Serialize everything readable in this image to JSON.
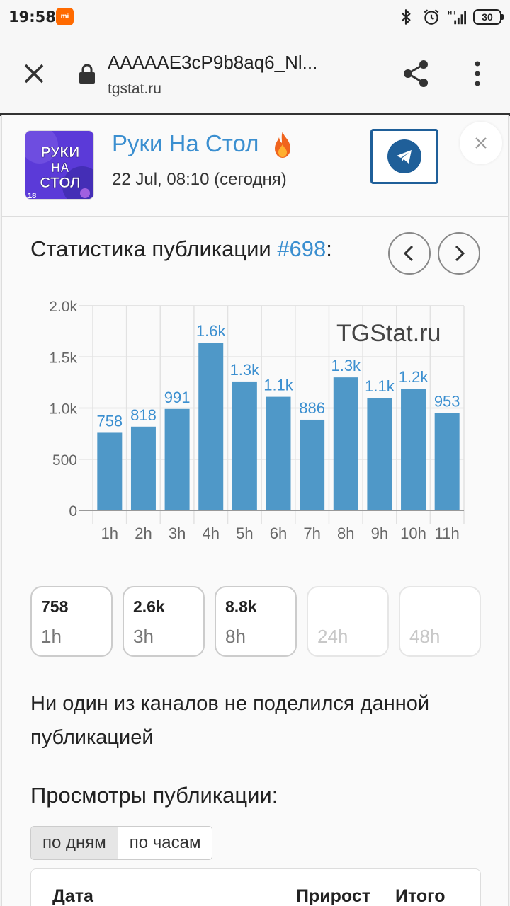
{
  "status_bar": {
    "time": "19:58",
    "app_badge": "mi",
    "network": "H+",
    "battery": "30"
  },
  "browser": {
    "url_title": "AAAAAE3cP9b8aq6_Nl...",
    "domain": "tgstat.ru"
  },
  "channel": {
    "name": "Руки На Стол",
    "post_date": "22 Jul, 08:10 (сегодня)",
    "avatar_text_1": "РУКИ",
    "avatar_text_2": "НА",
    "avatar_text_3": "СТОЛ",
    "avatar_badge": "18"
  },
  "stats": {
    "title_prefix": "Статистика публикации ",
    "post_number": "#698",
    "title_suffix": ":"
  },
  "chart_data": {
    "type": "bar",
    "categories": [
      "1h",
      "2h",
      "3h",
      "4h",
      "5h",
      "6h",
      "7h",
      "8h",
      "9h",
      "10h",
      "11h"
    ],
    "values": [
      758,
      818,
      991,
      1640,
      1260,
      1110,
      886,
      1300,
      1100,
      1190,
      953
    ],
    "data_labels": [
      "758",
      "818",
      "991",
      "1.6k",
      "1.3k",
      "1.1k",
      "886",
      "1.3k",
      "1.1k",
      "1.2k",
      "953"
    ],
    "yticks": [
      "0",
      "500",
      "1.0k",
      "1.5k",
      "2.0k"
    ],
    "ylim": [
      0,
      2000
    ],
    "watermark": "TGStat.ru",
    "grid": true,
    "bar_color": "#4f98c8",
    "label_color": "#3b8fd0"
  },
  "periods": [
    {
      "value": "758",
      "label": "1h",
      "enabled": true
    },
    {
      "value": "2.6k",
      "label": "3h",
      "enabled": true
    },
    {
      "value": "8.8k",
      "label": "8h",
      "enabled": true
    },
    {
      "value": "",
      "label": "24h",
      "enabled": false
    },
    {
      "value": "",
      "label": "48h",
      "enabled": false
    }
  ],
  "no_share_text": "Ни один из каналов не поделился данной публикацией",
  "views": {
    "title": "Просмотры публикации:",
    "toggle_days": "по дням",
    "toggle_hours": "по часам",
    "col_date": "Дата",
    "col_growth": "Прирост",
    "col_total": "Итого"
  },
  "colors": {
    "accent": "#3b8fd0",
    "telegram": "#1f5f99"
  }
}
